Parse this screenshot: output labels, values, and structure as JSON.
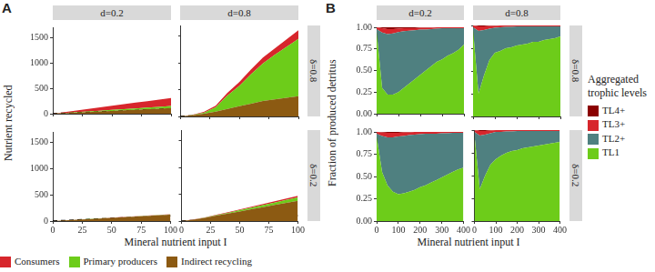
{
  "chart_data": [
    {
      "type": "area",
      "panel": "A",
      "stacked": true,
      "grid": false,
      "legend": "bottom",
      "xlabel": "Mineral nutrient input I",
      "ylabel": "Nutrient recycled",
      "x": [
        0,
        10,
        20,
        30,
        40,
        50,
        60,
        70,
        80,
        90,
        100
      ],
      "xlim": [
        0,
        100
      ],
      "xticks": [
        0,
        25,
        50,
        75,
        100
      ],
      "ylim": [
        0,
        1700
      ],
      "yticks": [
        0,
        500,
        1000,
        1500
      ],
      "facets": [
        {
          "column": "d=0.2",
          "row": "δ=0.8",
          "tick_labels": "y",
          "series": [
            {
              "name": "Consumers",
              "color": "#d7262c",
              "values": [
                0,
                16,
                32,
                48,
                64,
                80,
                96,
                112,
                128,
                144,
                160
              ]
            },
            {
              "name": "Primary producers",
              "color": "#6dcc1a",
              "values": [
                0,
                4,
                8,
                12,
                16,
                20,
                24,
                28,
                32,
                36,
                40
              ]
            },
            {
              "name": "Indirect recycling",
              "color": "#8c5a12",
              "values": [
                0,
                11,
                22,
                33,
                44,
                55,
                66,
                77,
                88,
                99,
                110
              ]
            },
            {
              "type": "line",
              "color": "#000000",
              "line_style": "dashed",
              "values": [
                0,
                10,
                20,
                30,
                40,
                50,
                60,
                70,
                80,
                90,
                100
              ]
            }
          ]
        },
        {
          "column": "d=0.8",
          "row": "δ=0.8",
          "tick_labels": false,
          "series": [
            {
              "name": "Consumers",
              "color": "#d7262c",
              "values": [
                0,
                5,
                15,
                30,
                50,
                70,
                90,
                110,
                120,
                140,
                160
              ]
            },
            {
              "name": "Primary producers",
              "color": "#6dcc1a",
              "values": [
                0,
                5,
                20,
                80,
                250,
                380,
                550,
                700,
                830,
                950,
                1070
              ]
            },
            {
              "name": "Indirect recycling",
              "color": "#8c5a12",
              "values": [
                0,
                20,
                50,
                90,
                140,
                190,
                240,
                290,
                320,
                350,
                380
              ]
            },
            {
              "type": "line",
              "color": "#000000",
              "line_style": "dashed",
              "values": [
                0,
                10,
                20,
                30,
                40,
                50,
                60,
                70,
                80,
                90,
                100
              ]
            }
          ]
        },
        {
          "column": "d=0.2",
          "row": "δ=0.2",
          "tick_labels": true,
          "series": [
            {
              "name": "Consumers",
              "color": "#d7262c",
              "values": [
                0,
                0.5,
                1,
                1.5,
                2,
                2.5,
                3,
                3.5,
                4,
                4.5,
                5
              ]
            },
            {
              "name": "Primary producers",
              "color": "#6dcc1a",
              "values": [
                0,
                0.5,
                1,
                1.5,
                2,
                2.5,
                3,
                3.5,
                4,
                4.5,
                5
              ]
            },
            {
              "name": "Indirect recycling",
              "color": "#8c5a12",
              "values": [
                0,
                12,
                24,
                36,
                48,
                60,
                72,
                84,
                96,
                108,
                120
              ]
            },
            {
              "type": "line",
              "color": "#000000",
              "line_style": "dashed",
              "values": [
                0,
                10,
                20,
                30,
                40,
                50,
                60,
                70,
                80,
                90,
                100
              ]
            }
          ]
        },
        {
          "column": "d=0.8",
          "row": "δ=0.2",
          "tick_labels": "x",
          "series": [
            {
              "name": "Consumers",
              "color": "#d7262c",
              "values": [
                0,
                2,
                4,
                7,
                10,
                13,
                16,
                20,
                24,
                27,
                30
              ]
            },
            {
              "name": "Primary producers",
              "color": "#6dcc1a",
              "values": [
                0,
                2,
                5,
                10,
                15,
                22,
                30,
                38,
                46,
                54,
                60
              ]
            },
            {
              "name": "Indirect recycling",
              "color": "#8c5a12",
              "values": [
                0,
                25,
                60,
                100,
                140,
                180,
                220,
                260,
                300,
                340,
                380
              ]
            },
            {
              "type": "line",
              "color": "#000000",
              "line_style": "dashed",
              "values": [
                0,
                10,
                20,
                30,
                40,
                50,
                60,
                70,
                80,
                90,
                100
              ]
            }
          ]
        }
      ]
    },
    {
      "type": "area",
      "panel": "B",
      "stacked": true,
      "grid": false,
      "legend": "right",
      "legend_title": "Aggregated trophic levels",
      "xlabel": "Mineral nutrient input I",
      "ylabel": "Fraction of produced detritus",
      "x": [
        0,
        25,
        50,
        75,
        100,
        125,
        150,
        175,
        200,
        225,
        250,
        275,
        300,
        325,
        350,
        375,
        400
      ],
      "xlim": [
        0,
        400
      ],
      "xticks": [
        0,
        100,
        200,
        300,
        400
      ],
      "ylim": [
        0,
        1
      ],
      "yticks": [
        {
          "value": 0,
          "label": "0.00"
        },
        {
          "value": 0.25,
          "label": "0.25"
        },
        {
          "value": 0.5,
          "label": "0.50"
        },
        {
          "value": 0.75,
          "label": "0.75"
        },
        {
          "value": 1,
          "label": "1.00"
        }
      ],
      "facets": [
        {
          "column": "d=0.2",
          "row": "δ=0.8",
          "tick_labels": "y",
          "series": [
            {
              "name": "TL4+",
              "color": "#8b0000",
              "values": [
                0,
                0.01,
                0.02,
                0.02,
                0.015,
                0.01,
                0.01,
                0.01,
                0.005,
                0.005,
                0.005,
                0,
                0,
                0,
                0,
                0,
                0
              ]
            },
            {
              "name": "TL3+",
              "color": "#d7262c",
              "values": [
                0.02,
                0.05,
                0.06,
                0.05,
                0.04,
                0.035,
                0.03,
                0.025,
                0.02,
                0.02,
                0.015,
                0.015,
                0.01,
                0.01,
                0.01,
                0.01,
                0.01
              ]
            },
            {
              "name": "TL2+",
              "color": "#4f8080",
              "values": [
                0.03,
                0.64,
                0.7,
                0.71,
                0.695,
                0.655,
                0.61,
                0.565,
                0.525,
                0.475,
                0.43,
                0.385,
                0.36,
                0.32,
                0.29,
                0.25,
                0.19
              ]
            },
            {
              "name": "TL1",
              "color": "#6dcc1a",
              "values": [
                0.95,
                0.3,
                0.22,
                0.22,
                0.25,
                0.3,
                0.35,
                0.4,
                0.45,
                0.5,
                0.55,
                0.6,
                0.63,
                0.67,
                0.7,
                0.74,
                0.8
              ]
            }
          ]
        },
        {
          "column": "d=0.8",
          "row": "δ=0.8",
          "tick_labels": false,
          "series": [
            {
              "name": "TL4+",
              "color": "#8b0000",
              "values": [
                0,
                0.01,
                0.01,
                0.005,
                0.005,
                0,
                0,
                0,
                0,
                0,
                0,
                0,
                0,
                0,
                0,
                0,
                0
              ]
            },
            {
              "name": "TL3+",
              "color": "#d7262c",
              "values": [
                0.02,
                0.05,
                0.04,
                0.03,
                0.02,
                0.02,
                0.015,
                0.015,
                0.01,
                0.01,
                0.01,
                0.01,
                0.01,
                0.01,
                0.01,
                0.01,
                0.01
              ]
            },
            {
              "name": "TL2+",
              "color": "#4f8080",
              "values": [
                0.03,
                0.69,
                0.5,
                0.345,
                0.275,
                0.26,
                0.235,
                0.225,
                0.21,
                0.2,
                0.19,
                0.17,
                0.17,
                0.15,
                0.14,
                0.13,
                0.11
              ]
            },
            {
              "name": "TL1",
              "color": "#6dcc1a",
              "values": [
                0.95,
                0.25,
                0.45,
                0.62,
                0.7,
                0.72,
                0.75,
                0.76,
                0.78,
                0.79,
                0.8,
                0.82,
                0.82,
                0.84,
                0.85,
                0.86,
                0.88
              ]
            }
          ]
        },
        {
          "column": "d=0.2",
          "row": "δ=0.2",
          "tick_labels": true,
          "series": [
            {
              "name": "TL4+",
              "color": "#8b0000",
              "values": [
                0,
                0.005,
                0.01,
                0.01,
                0.01,
                0.005,
                0.005,
                0,
                0,
                0,
                0,
                0,
                0,
                0,
                0,
                0,
                0
              ]
            },
            {
              "name": "TL3+",
              "color": "#d7262c",
              "values": [
                0.02,
                0.04,
                0.05,
                0.05,
                0.04,
                0.04,
                0.03,
                0.03,
                0.025,
                0.02,
                0.02,
                0.02,
                0.015,
                0.015,
                0.01,
                0.01,
                0.01
              ]
            },
            {
              "name": "TL2+",
              "color": "#4f8080",
              "values": [
                0.03,
                0.405,
                0.54,
                0.61,
                0.65,
                0.645,
                0.635,
                0.62,
                0.595,
                0.58,
                0.55,
                0.52,
                0.495,
                0.465,
                0.44,
                0.41,
                0.39
              ]
            },
            {
              "name": "TL1",
              "color": "#6dcc1a",
              "values": [
                0.95,
                0.55,
                0.4,
                0.33,
                0.3,
                0.31,
                0.33,
                0.35,
                0.38,
                0.4,
                0.43,
                0.46,
                0.49,
                0.52,
                0.55,
                0.58,
                0.6
              ]
            }
          ]
        },
        {
          "column": "d=0.8",
          "row": "δ=0.2",
          "tick_labels": "x",
          "series": [
            {
              "name": "TL4+",
              "color": "#8b0000",
              "values": [
                0,
                0.01,
                0.01,
                0.005,
                0,
                0,
                0,
                0,
                0,
                0,
                0,
                0,
                0,
                0,
                0,
                0,
                0
              ]
            },
            {
              "name": "TL3+",
              "color": "#d7262c",
              "values": [
                0.02,
                0.05,
                0.04,
                0.03,
                0.02,
                0.02,
                0.015,
                0.015,
                0.01,
                0.01,
                0.01,
                0.01,
                0.01,
                0.01,
                0.01,
                0.01,
                0.01
              ]
            },
            {
              "name": "TL2+",
              "color": "#4f8080",
              "values": [
                0.03,
                0.59,
                0.45,
                0.345,
                0.3,
                0.26,
                0.235,
                0.215,
                0.21,
                0.19,
                0.18,
                0.17,
                0.16,
                0.15,
                0.14,
                0.13,
                0.12
              ]
            },
            {
              "name": "TL1",
              "color": "#6dcc1a",
              "values": [
                0.95,
                0.35,
                0.5,
                0.62,
                0.68,
                0.72,
                0.75,
                0.77,
                0.78,
                0.8,
                0.81,
                0.82,
                0.83,
                0.84,
                0.85,
                0.86,
                0.87
              ]
            }
          ]
        }
      ]
    }
  ]
}
